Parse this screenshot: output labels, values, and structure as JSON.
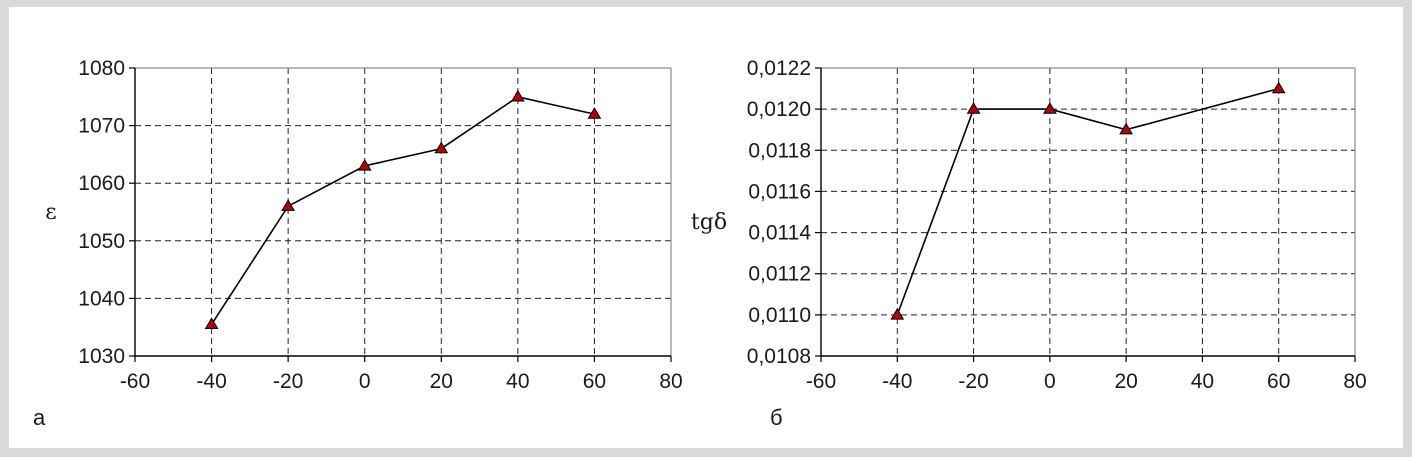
{
  "chart_data": [
    {
      "type": "line",
      "panel_label": "а",
      "title": "",
      "xlabel": "",
      "ylabel": "ε",
      "xlim": [
        -60,
        80
      ],
      "ylim": [
        1030,
        1080
      ],
      "xticks": [
        -60,
        -40,
        -20,
        0,
        20,
        40,
        60,
        80
      ],
      "yticks": [
        1030,
        1040,
        1050,
        1060,
        1070,
        1080
      ],
      "ytick_labels": [
        "1030",
        "1040",
        "1050",
        "1060",
        "1070",
        "1080"
      ],
      "grid": true,
      "series": [
        {
          "x": [
            -40,
            -20,
            0,
            20,
            40,
            60
          ],
          "y": [
            1035.5,
            1056,
            1063,
            1066,
            1075,
            1072
          ],
          "color": "#000000",
          "marker": "triangle",
          "marker_color": "#b30000"
        }
      ]
    },
    {
      "type": "line",
      "panel_label": "б",
      "title": "",
      "xlabel": "",
      "ylabel": "tgδ",
      "xlim": [
        -60,
        80
      ],
      "ylim": [
        0.0108,
        0.0122
      ],
      "xticks": [
        -60,
        -40,
        -20,
        0,
        20,
        40,
        60,
        80
      ],
      "yticks": [
        0.0108,
        0.011,
        0.0112,
        0.0114,
        0.0116,
        0.0118,
        0.012,
        0.0122
      ],
      "ytick_labels": [
        "0,0108",
        "0,0110",
        "0,0112",
        "0,0114",
        "0,0116",
        "0,0118",
        "0,0120",
        "0,0122"
      ],
      "grid": true,
      "series": [
        {
          "x": [
            -40,
            -20,
            0,
            20,
            60
          ],
          "y": [
            0.011,
            0.012,
            0.012,
            0.0119,
            0.0121
          ],
          "color": "#000000",
          "marker": "triangle",
          "marker_color": "#b30000"
        }
      ]
    }
  ]
}
